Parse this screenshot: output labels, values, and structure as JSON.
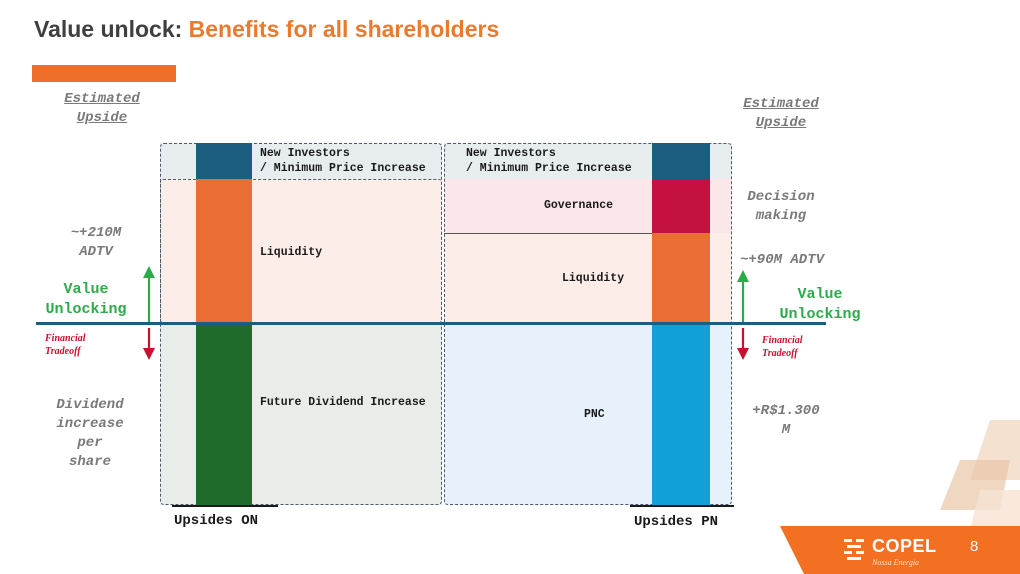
{
  "header": {
    "title_main": "Value unlock: ",
    "title_accent": "Benefits for all shareholders"
  },
  "left": {
    "estimated_upside": "Estimated\nUpside",
    "adtv": "~+210M\nADTV",
    "value_unlocking": "Value\nUnlocking",
    "financial_tradeoff": "Financial\nTradeoff",
    "dividend": "Dividend\nincrease\nper\nshare"
  },
  "right": {
    "estimated_upside": "Estimated\nUpside",
    "decision": "Decision\nmaking",
    "adtv": "~+90M ADTV",
    "value_unlocking": "Value\nUnlocking",
    "financial_tradeoff": "Financial\nTradeoff",
    "amount": "+R$1.300\nM"
  },
  "on_panel": {
    "new_investors": "New Investors\n/ Minimum Price Increase",
    "liquidity": "Liquidity",
    "future_dividend": "Future Dividend Increase",
    "axis_label": "Upsides ON"
  },
  "pn_panel": {
    "new_investors": "New Investors\n/ Minimum Price Increase",
    "governance": "Governance",
    "liquidity": "Liquidity",
    "pnc": "PNC",
    "axis_label": "Upsides PN"
  },
  "footer": {
    "brand": "COPEL",
    "tagline": "Nossa Energia",
    "page_number": "8"
  },
  "colors": {
    "orange": "#ea6e33",
    "dark_blue": "#1b5e80",
    "dark_green": "#1e6b2c",
    "crimson": "#c5113f",
    "light_blue": "#13a0d8",
    "green_arrow": "#2eaa4a",
    "red_arrow": "#c8102e"
  }
}
